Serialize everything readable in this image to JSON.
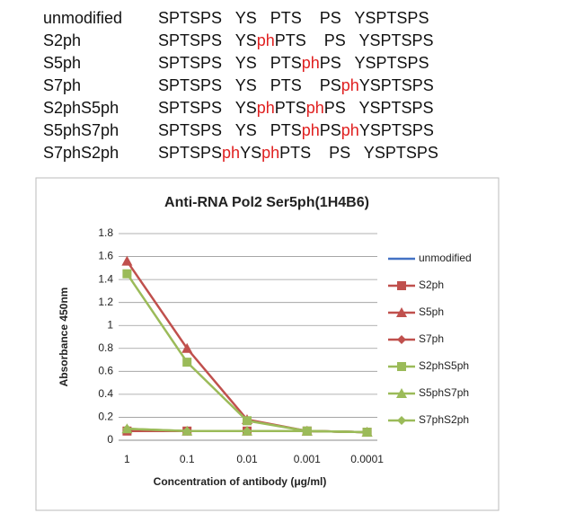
{
  "table": {
    "highlight": "ph",
    "highlight_color": "#e02020",
    "rows": [
      {
        "name": "unmodified",
        "sequence": "SPTSPS   YS   PTS    PS   YSPTSPS"
      },
      {
        "name": "S2ph",
        "sequence": "SPTSPS   YSphPTS    PS   YSPTSPS"
      },
      {
        "name": "S5ph",
        "sequence": "SPTSPS   YS   PTSphPS   YSPTSPS"
      },
      {
        "name": "S7ph",
        "sequence": "SPTSPS   YS   PTS    PSphYSPTSPS"
      },
      {
        "name": "S2phS5ph",
        "sequence": "SPTSPS   YSphPTSphPS   YSPTSPS"
      },
      {
        "name": "S5phS7ph",
        "sequence": "SPTSPS   YS   PTSphPSphYSPTSPS"
      },
      {
        "name": "S7phS2ph",
        "sequence": "SPTSPSphYSphPTS    PS   YSPTSPS"
      }
    ]
  },
  "chart_data": {
    "type": "line",
    "title": "Anti-RNA Pol2 Ser5ph(1H4B6)",
    "x_label": "Concentration of antibody (μg/ml)",
    "y_label": "Absorbance 450nm",
    "categories": [
      "1",
      "0.1",
      "0.01",
      "0.001",
      "0.0001"
    ],
    "ylim": [
      0,
      1.8
    ],
    "yticks": [
      0,
      0.2,
      0.4,
      0.6,
      0.8,
      1,
      1.2,
      1.4,
      1.6,
      1.8
    ],
    "grid": true,
    "legend": "right",
    "series": [
      {
        "name": "unmodified",
        "color": "#4472c4",
        "marker": "none",
        "values": [
          0.08,
          0.08,
          0.08,
          0.08,
          0.07
        ]
      },
      {
        "name": "S2ph",
        "color": "#c0504d",
        "marker": "square",
        "values": [
          0.08,
          0.08,
          0.08,
          0.08,
          0.07
        ]
      },
      {
        "name": "S5ph",
        "color": "#c0504d",
        "marker": "triangle",
        "values": [
          1.56,
          0.8,
          0.18,
          0.08,
          0.07
        ]
      },
      {
        "name": "S7ph",
        "color": "#c0504d",
        "marker": "diamond",
        "values": [
          0.09,
          0.08,
          0.08,
          0.08,
          0.07
        ]
      },
      {
        "name": "S2phS5ph",
        "color": "#9bbb59",
        "marker": "square",
        "values": [
          1.45,
          0.68,
          0.17,
          0.08,
          0.07
        ]
      },
      {
        "name": "S5phS7ph",
        "color": "#9bbb59",
        "marker": "triangle",
        "values": [
          0.1,
          0.08,
          0.08,
          0.08,
          0.07
        ]
      },
      {
        "name": "S7phS2ph",
        "color": "#9bbb59",
        "marker": "diamond",
        "values": [
          0.1,
          0.08,
          0.08,
          0.08,
          0.07
        ]
      }
    ]
  }
}
